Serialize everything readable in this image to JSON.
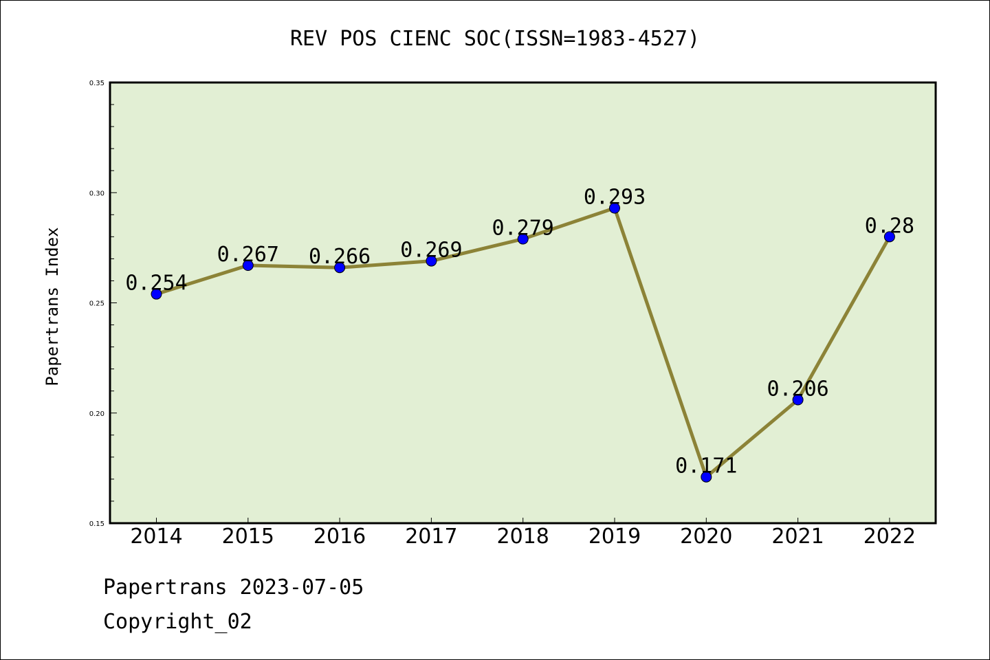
{
  "chart_data": {
    "type": "line",
    "title": "REV POS CIENC SOC(ISSN=1983-4527)",
    "xlabel": "",
    "ylabel": "Papertrans Index",
    "categories": [
      "2014",
      "2015",
      "2016",
      "2017",
      "2018",
      "2019",
      "2020",
      "2021",
      "2022"
    ],
    "series": [
      {
        "values": [
          0.254,
          0.267,
          0.266,
          0.269,
          0.279,
          0.293,
          0.171,
          0.206,
          0.28
        ]
      }
    ],
    "data_labels": [
      "0.254",
      "0.267",
      "0.266",
      "0.269",
      "0.279",
      "0.293",
      "0.171",
      "0.206",
      "0.28"
    ],
    "ylim": [
      0.15,
      0.35
    ],
    "yticks": [
      0.15,
      0.2,
      0.25,
      0.3,
      0.35
    ],
    "ytick_labels": [
      "0.15",
      "0.20",
      "0.25",
      "0.30",
      "0.35"
    ],
    "grid": false,
    "colors": {
      "plot_background": "#e2efd4",
      "line": "#8c8337",
      "marker": "#0000ff"
    }
  },
  "footer": {
    "line1": "Papertrans 2023-07-05",
    "line2": "Copyright_02"
  }
}
